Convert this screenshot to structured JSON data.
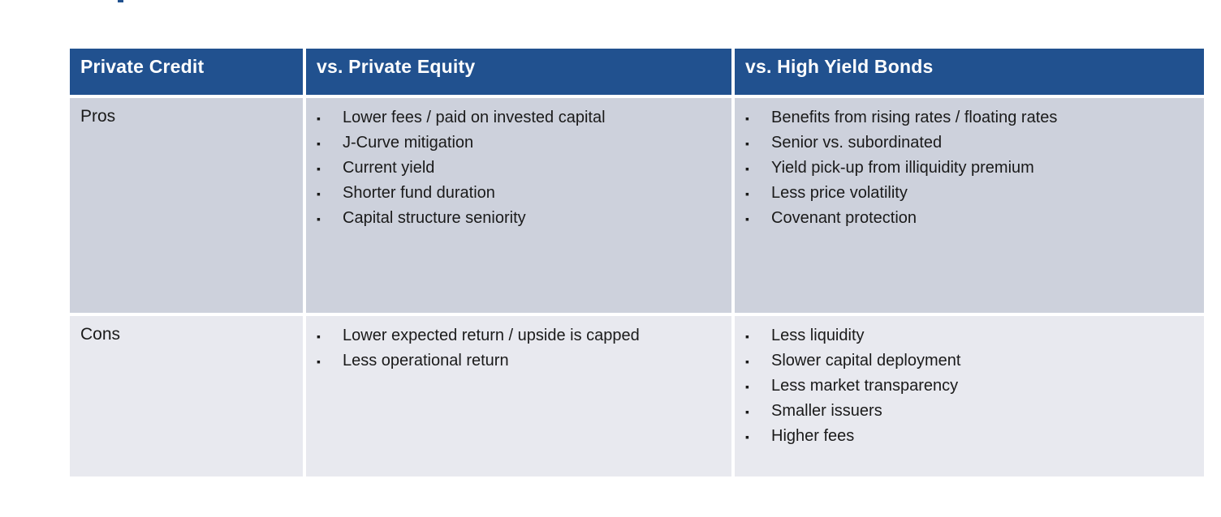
{
  "decor": {
    "cropped_title_fragment": ""
  },
  "table": {
    "bullet_glyph": "▪",
    "header": [
      "Private Credit",
      "vs. Private Equity",
      "vs. High Yield Bonds"
    ],
    "rows": [
      {
        "label": "Pros",
        "vs_private_equity": [
          "Lower fees / paid on invested capital",
          "J-Curve mitigation",
          "Current yield",
          "Shorter fund duration",
          "Capital structure seniority"
        ],
        "vs_high_yield_bonds": [
          "Benefits from rising rates / floating rates",
          "Senior vs. subordinated",
          "Yield pick-up from illiquidity premium",
          "Less price volatility",
          "Covenant protection"
        ]
      },
      {
        "label": "Cons",
        "vs_private_equity": [
          "Lower expected return / upside is capped",
          "Less operational return"
        ],
        "vs_high_yield_bonds": [
          "Less liquidity",
          "Slower capital deployment",
          "Less market transparency",
          "Smaller issuers",
          "Higher fees"
        ]
      }
    ]
  },
  "colors": {
    "header_bg": "#21518F",
    "header_text": "#FFFFFF",
    "pros_row_bg": "#CDD1DC",
    "cons_row_bg": "#E8E9EF",
    "body_text": "#1A1A1A"
  }
}
